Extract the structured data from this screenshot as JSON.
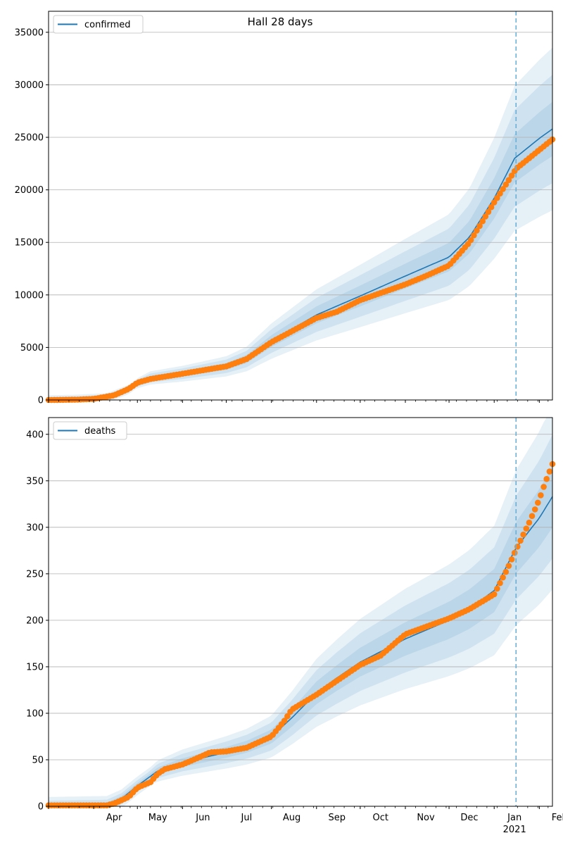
{
  "figure": {
    "title": "Hall 28 days"
  },
  "x_axis": {
    "month_ticks": [
      "Apr",
      "May",
      "Jun",
      "Jul",
      "Aug",
      "Sep",
      "Oct",
      "Nov",
      "Dec",
      "Jan",
      "Feb"
    ],
    "year_label": "2021"
  },
  "chart_data": [
    {
      "type": "line",
      "legend": "confirmed",
      "legend_position": "top-left",
      "grid": "horizontal",
      "ylim": [
        0,
        37000
      ],
      "yticks": [
        0,
        5000,
        10000,
        15000,
        20000,
        25000,
        30000,
        35000
      ],
      "xlim": [
        "2020-03-01",
        "2021-02-10"
      ],
      "forecast_start": "2021-01-16",
      "fit_line": [
        [
          "2020-03-01",
          0
        ],
        [
          "2020-03-20",
          50
        ],
        [
          "2020-04-10",
          200
        ],
        [
          "2020-04-25",
          1000
        ],
        [
          "2020-05-01",
          1600
        ],
        [
          "2020-05-10",
          2100
        ],
        [
          "2020-06-01",
          2500
        ],
        [
          "2020-07-01",
          3200
        ],
        [
          "2020-07-15",
          3900
        ],
        [
          "2020-08-01",
          5600
        ],
        [
          "2020-09-01",
          8100
        ],
        [
          "2020-10-01",
          9900
        ],
        [
          "2020-11-01",
          11800
        ],
        [
          "2020-12-01",
          13600
        ],
        [
          "2020-12-15",
          15500
        ],
        [
          "2021-01-01",
          19200
        ],
        [
          "2021-01-15",
          23000
        ],
        [
          "2021-02-01",
          24900
        ],
        [
          "2021-02-10",
          25800
        ]
      ],
      "uncertainty_bands": [
        {
          "half_width_frac": 0.1,
          "min_abs": 150
        },
        {
          "half_width_frac": 0.2,
          "min_abs": 300
        },
        {
          "half_width_frac": 0.3,
          "min_abs": 450
        }
      ],
      "observed_points": [
        [
          "2020-03-01",
          0
        ],
        [
          "2020-03-20",
          30
        ],
        [
          "2020-04-01",
          100
        ],
        [
          "2020-04-15",
          450
        ],
        [
          "2020-04-25",
          1050
        ],
        [
          "2020-05-01",
          1650
        ],
        [
          "2020-05-10",
          2000
        ],
        [
          "2020-06-01",
          2500
        ],
        [
          "2020-07-01",
          3200
        ],
        [
          "2020-07-15",
          3900
        ],
        [
          "2020-08-01",
          5500
        ],
        [
          "2020-09-01",
          7800
        ],
        [
          "2020-09-15",
          8400
        ],
        [
          "2020-10-01",
          9500
        ],
        [
          "2020-11-01",
          11000
        ],
        [
          "2020-11-15",
          11800
        ],
        [
          "2020-12-01",
          12800
        ],
        [
          "2020-12-15",
          15000
        ],
        [
          "2021-01-01",
          18800
        ],
        [
          "2021-01-16",
          22000
        ],
        [
          "2021-02-01",
          23800
        ],
        [
          "2021-02-10",
          24800
        ]
      ],
      "colors": {
        "line": "#1f77b4",
        "band": "#1f77b4",
        "points": "#ff7f0e",
        "forecast_line": "#6baed6"
      }
    },
    {
      "type": "line",
      "legend": "deaths",
      "legend_position": "top-left",
      "grid": "horizontal",
      "ylim": [
        0,
        418
      ],
      "yticks": [
        0,
        50,
        100,
        150,
        200,
        250,
        300,
        350,
        400
      ],
      "xlim": [
        "2020-03-01",
        "2021-02-10"
      ],
      "forecast_start": "2021-01-16",
      "fit_line": [
        [
          "2020-03-01",
          0
        ],
        [
          "2020-04-10",
          1
        ],
        [
          "2020-04-20",
          8
        ],
        [
          "2020-05-01",
          22
        ],
        [
          "2020-05-15",
          38
        ],
        [
          "2020-06-01",
          47
        ],
        [
          "2020-07-01",
          58
        ],
        [
          "2020-07-15",
          64
        ],
        [
          "2020-08-01",
          75
        ],
        [
          "2020-08-15",
          95
        ],
        [
          "2020-09-01",
          122
        ],
        [
          "2020-09-15",
          138
        ],
        [
          "2020-10-01",
          155
        ],
        [
          "2020-11-01",
          180
        ],
        [
          "2020-12-01",
          200
        ],
        [
          "2020-12-15",
          212
        ],
        [
          "2021-01-01",
          232
        ],
        [
          "2021-01-16",
          278
        ],
        [
          "2021-02-01",
          310
        ],
        [
          "2021-02-10",
          333
        ]
      ],
      "uncertainty_bands": [
        {
          "half_width_frac": 0.1,
          "min_abs": 3
        },
        {
          "half_width_frac": 0.2,
          "min_abs": 6
        },
        {
          "half_width_frac": 0.3,
          "min_abs": 10
        }
      ],
      "observed_points": [
        [
          "2020-03-01",
          1
        ],
        [
          "2020-04-10",
          1
        ],
        [
          "2020-04-15",
          3
        ],
        [
          "2020-04-25",
          10
        ],
        [
          "2020-05-01",
          20
        ],
        [
          "2020-05-10",
          26
        ],
        [
          "2020-05-15",
          35
        ],
        [
          "2020-05-20",
          40
        ],
        [
          "2020-06-01",
          45
        ],
        [
          "2020-06-10",
          51
        ],
        [
          "2020-06-20",
          58
        ],
        [
          "2020-07-01",
          59
        ],
        [
          "2020-07-15",
          63
        ],
        [
          "2020-08-01",
          75
        ],
        [
          "2020-08-10",
          92
        ],
        [
          "2020-08-15",
          104
        ],
        [
          "2020-09-01",
          120
        ],
        [
          "2020-09-15",
          135
        ],
        [
          "2020-10-01",
          152
        ],
        [
          "2020-10-15",
          162
        ],
        [
          "2020-11-01",
          185
        ],
        [
          "2020-11-15",
          193
        ],
        [
          "2020-12-01",
          202
        ],
        [
          "2020-12-15",
          212
        ],
        [
          "2021-01-01",
          228
        ],
        [
          "2021-01-10",
          255
        ],
        [
          "2021-01-16",
          276
        ],
        [
          "2021-01-25",
          305
        ],
        [
          "2021-02-01",
          330
        ],
        [
          "2021-02-05",
          348
        ],
        [
          "2021-02-10",
          368
        ]
      ],
      "colors": {
        "line": "#1f77b4",
        "band": "#1f77b4",
        "points": "#ff7f0e",
        "forecast_line": "#6baed6"
      }
    }
  ]
}
